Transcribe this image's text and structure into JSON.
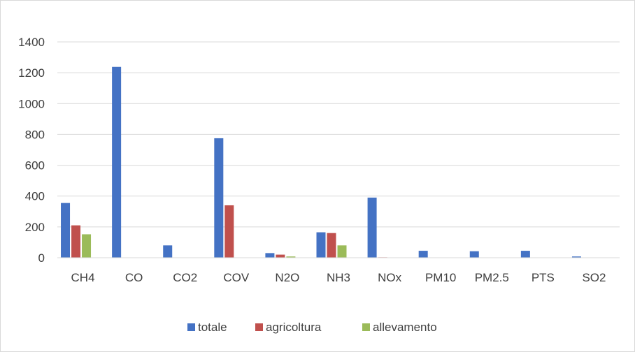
{
  "chart_data": {
    "type": "bar",
    "title": "",
    "xlabel": "",
    "ylabel": "",
    "ylim": [
      0,
      1400
    ],
    "yticks": [
      0,
      200,
      400,
      600,
      800,
      1000,
      1200,
      1400
    ],
    "grid": true,
    "legend_position": "bottom",
    "categories": [
      "CH4",
      "CO",
      "CO2",
      "COV",
      "N2O",
      "NH3",
      "NOx",
      "PM10",
      "PM2.5",
      "PTS",
      "SO2"
    ],
    "series": [
      {
        "name": "totale",
        "color": "#4472C4",
        "values": [
          355,
          1238,
          80,
          775,
          30,
          165,
          390,
          45,
          42,
          45,
          8
        ]
      },
      {
        "name": "agricoltura",
        "color": "#C0504D",
        "values": [
          210,
          0,
          0,
          340,
          20,
          160,
          3,
          0,
          0,
          0,
          0
        ]
      },
      {
        "name": "allevamento",
        "color": "#9BBB59",
        "values": [
          152,
          0,
          0,
          0,
          8,
          80,
          0,
          0,
          0,
          0,
          0
        ]
      }
    ]
  }
}
